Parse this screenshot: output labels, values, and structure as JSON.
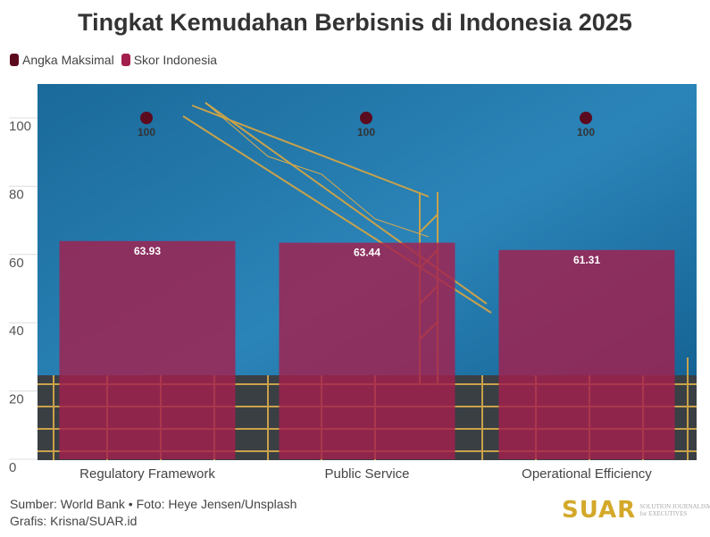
{
  "chart_data": {
    "type": "bar",
    "title": "Tingkat Kemudahan Berbisnis di Indonesia 2025",
    "categories": [
      "Regulatory Framework",
      "Public Service",
      "Operational Efficiency"
    ],
    "series": [
      {
        "name": "Angka Maksimal",
        "type": "dot",
        "color": "#5c0a1e",
        "values": [
          100,
          100,
          100
        ]
      },
      {
        "name": "Skor Indonesia",
        "type": "bar",
        "color": "#a3204e",
        "values": [
          63.93,
          63.44,
          61.31
        ]
      }
    ],
    "ylim": [
      0,
      110
    ],
    "yticks": [
      0,
      20,
      40,
      60,
      80,
      100
    ],
    "grid": true,
    "legend": "top-left",
    "background": "photo of construction crane against blue sky"
  },
  "footer": {
    "source": "Sumber: World Bank • Foto: Heye Jensen/Unsplash",
    "credit": "Grafis: Krisna/SUAR.id"
  },
  "logo": {
    "name": "SUAR",
    "tagline": "SOLUTION JOURNALISM for EXECUTIVES"
  }
}
